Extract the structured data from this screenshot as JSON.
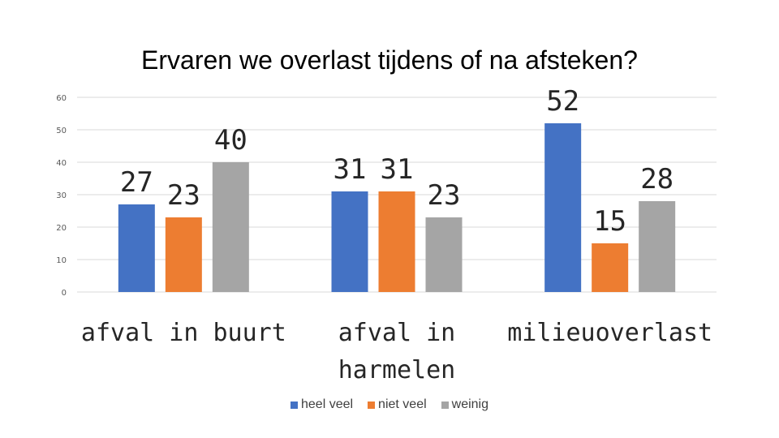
{
  "chart_data": {
    "type": "bar",
    "title": "Ervaren we overlast tijdens of na afsteken?",
    "categories": [
      "afval in buurt",
      "afval in harmelen",
      "milieuoverlast"
    ],
    "series": [
      {
        "name": "heel veel",
        "color": "#4472C4",
        "values": [
          27,
          31,
          52
        ]
      },
      {
        "name": "niet veel",
        "color": "#ED7D31",
        "values": [
          23,
          31,
          15
        ]
      },
      {
        "name": "weinig",
        "color": "#A5A5A5",
        "values": [
          40,
          23,
          28
        ]
      }
    ],
    "yticks": [
      0,
      10,
      20,
      30,
      40,
      50,
      60
    ],
    "ylim": [
      0,
      60
    ],
    "grid": true,
    "legend_position": "bottom"
  }
}
